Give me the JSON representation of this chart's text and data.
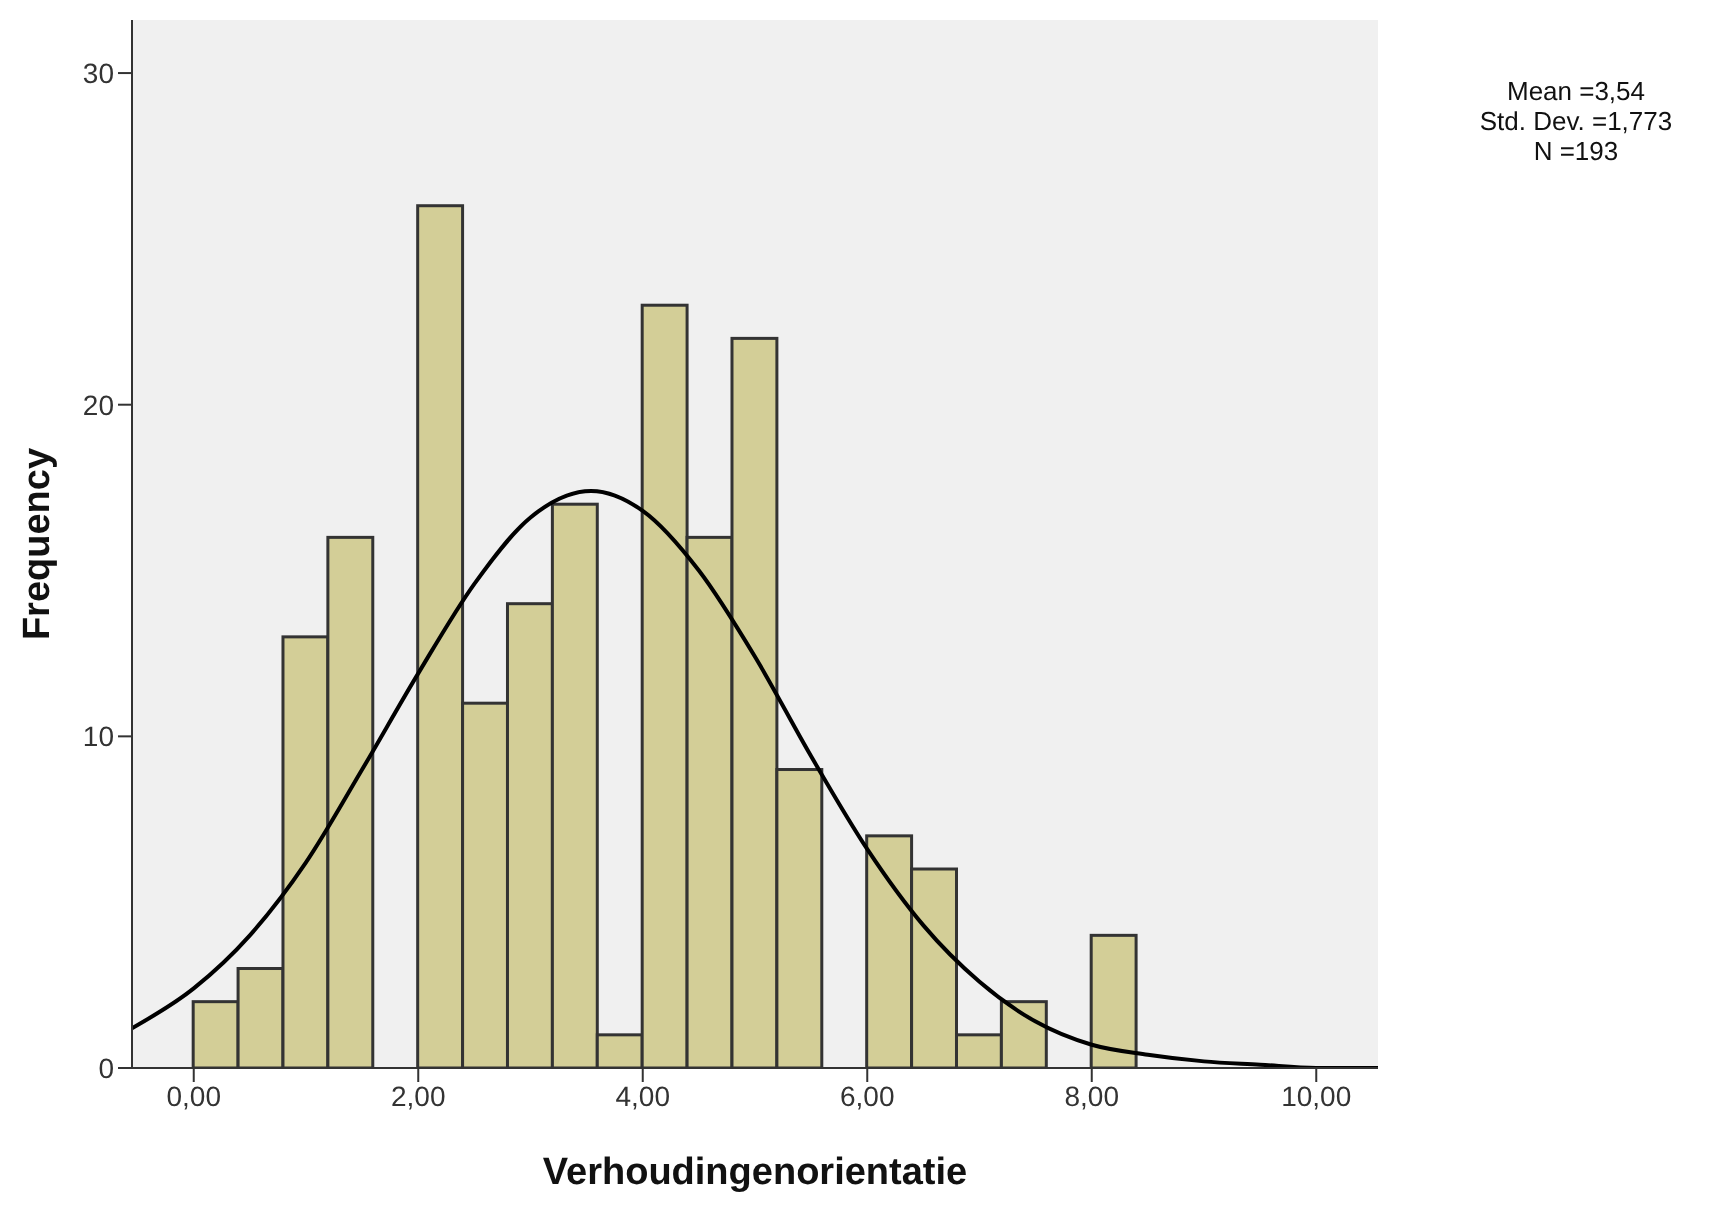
{
  "chart_data": {
    "type": "histogram",
    "xlabel": "Verhoudingenorientatie",
    "ylabel": "Frequency",
    "bins": [
      0,
      0.4,
      0.8,
      1.2,
      1.6,
      2.0,
      2.4,
      2.8,
      3.2,
      3.6,
      4.0,
      4.4,
      4.8,
      5.2,
      5.6,
      6.0,
      6.4,
      6.8,
      7.2,
      7.6,
      8.0,
      8.4
    ],
    "values": [
      2,
      3,
      13,
      16,
      0,
      26,
      11,
      14,
      17,
      1,
      23,
      16,
      22,
      9,
      0,
      7,
      6,
      1,
      2,
      0,
      4
    ],
    "color": "#d3ce97",
    "series": [
      {
        "type": "line",
        "color": "#000000",
        "x": [
          -0.55,
          0,
          0.5,
          1.0,
          1.5,
          2.0,
          2.5,
          3.0,
          3.54,
          4.0,
          4.5,
          5.0,
          5.5,
          6.0,
          6.5,
          7.0,
          7.5,
          8.0,
          8.5,
          9.0,
          9.5,
          10.0,
          10.55
        ],
        "values": [
          1.2,
          2.4,
          4.0,
          6.2,
          9.0,
          11.9,
          14.6,
          16.6,
          17.4,
          16.8,
          15.0,
          12.4,
          9.4,
          6.6,
          4.3,
          2.6,
          1.4,
          0.7,
          0.4,
          0.2,
          0.1,
          0.0,
          0.0
        ]
      }
    ],
    "xlim": [
      -0.55,
      10.55
    ],
    "xticks": [
      {
        "value": 0,
        "label": "0,00"
      },
      {
        "value": 2,
        "label": "2,00"
      },
      {
        "value": 4,
        "label": "4,00"
      },
      {
        "value": 6,
        "label": "6,00"
      },
      {
        "value": 8,
        "label": "8,00"
      },
      {
        "value": 10,
        "label": "10,00"
      }
    ],
    "ylim": [
      0,
      31.6
    ],
    "yticks": [
      0,
      10,
      20,
      30
    ],
    "annotations": [
      "Mean =3,54",
      "Std. Dev. =1,773",
      "N =193"
    ]
  }
}
